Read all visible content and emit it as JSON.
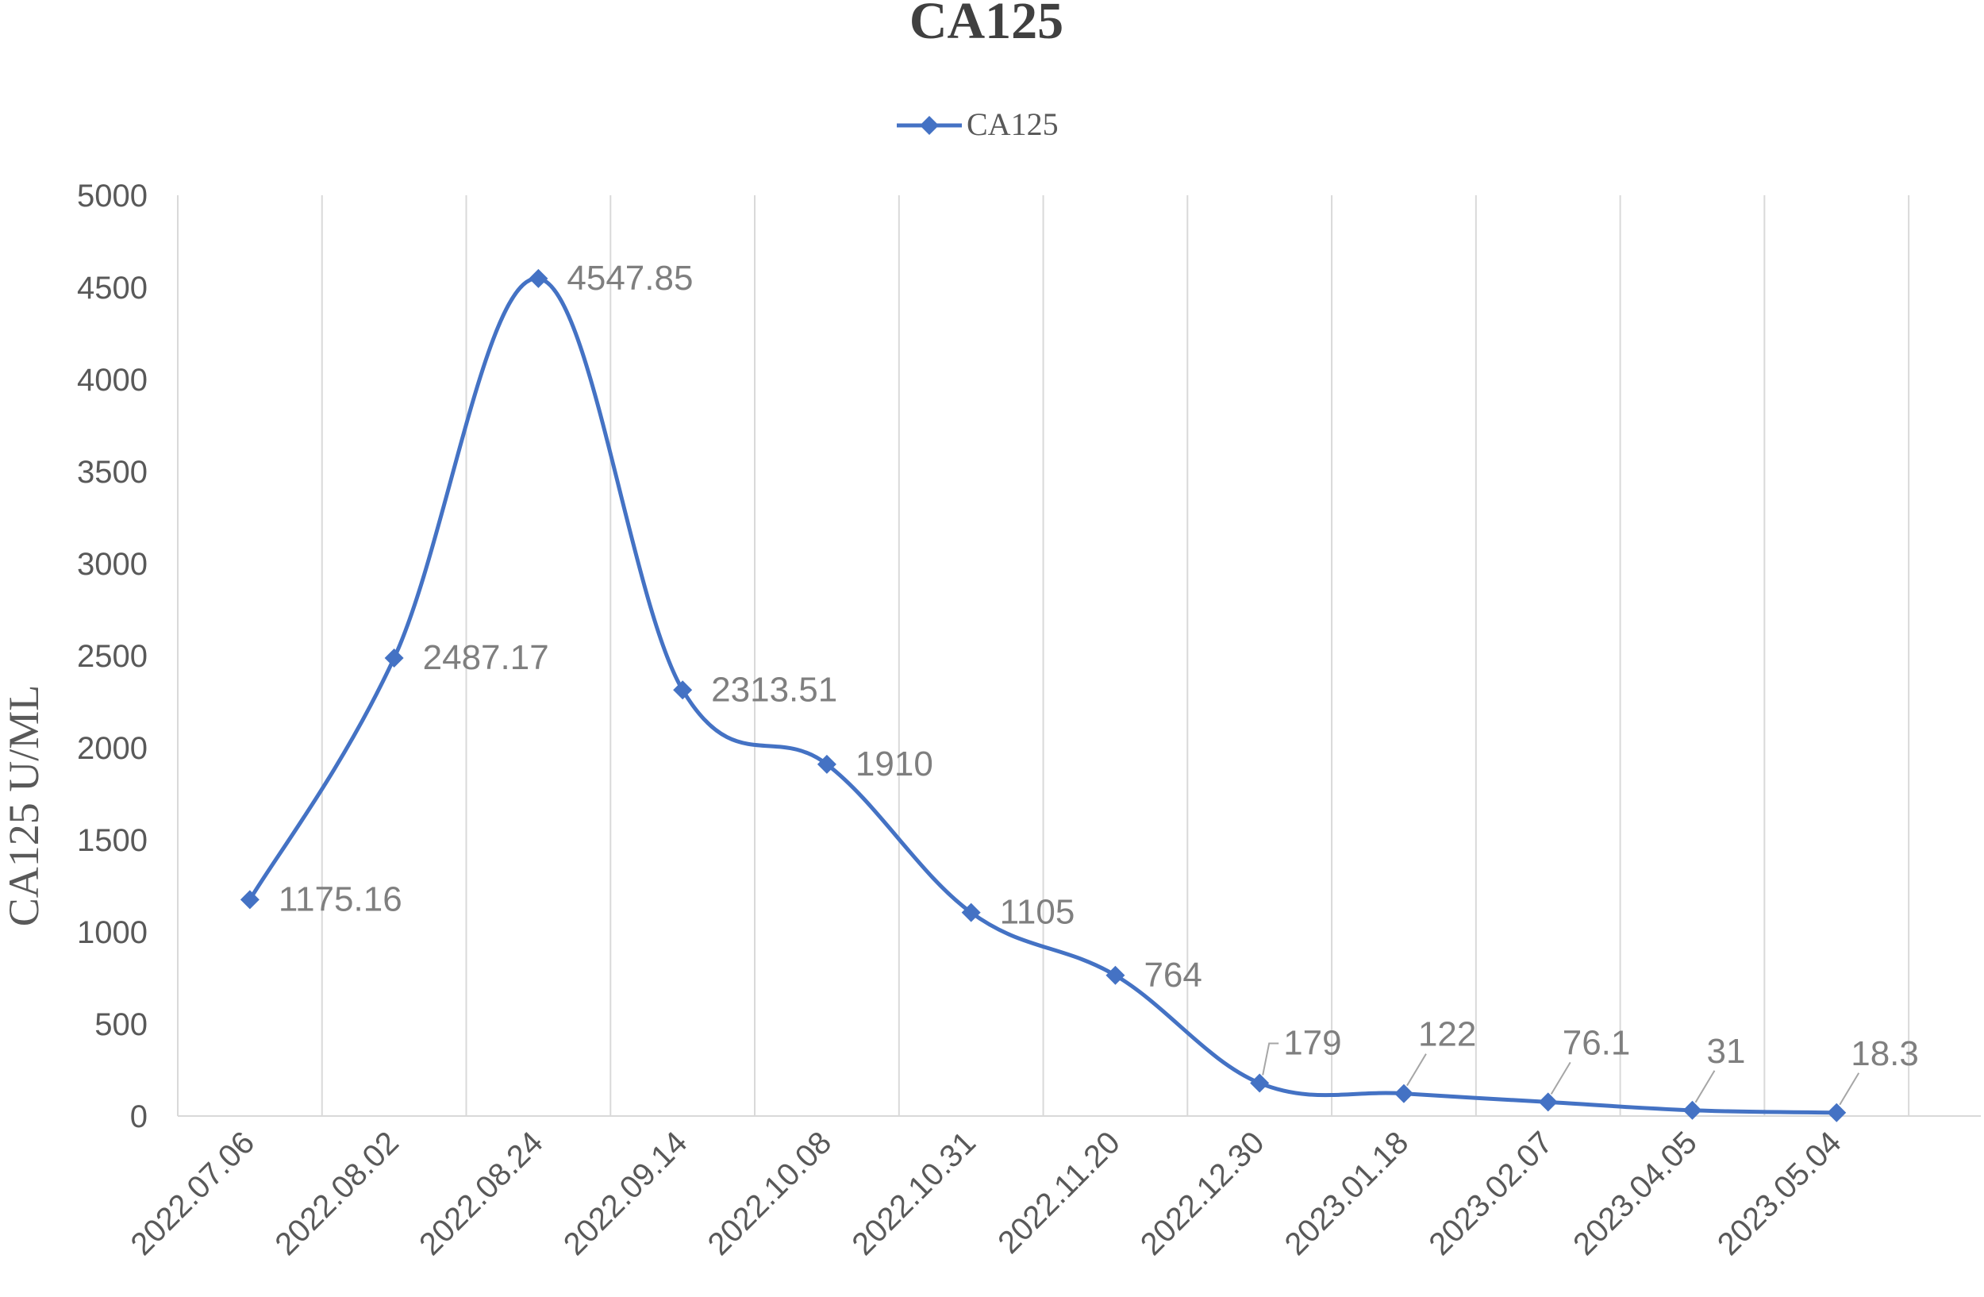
{
  "chart_data": {
    "type": "line",
    "title": "CA125",
    "xlabel": "",
    "ylabel": "CA125 U/ML",
    "ylim": [
      0,
      5000
    ],
    "y_ticks": [
      0,
      500,
      1000,
      1500,
      2000,
      2500,
      3000,
      3500,
      4000,
      4500,
      5000
    ],
    "categories": [
      "2022.07.06",
      "2022.08.02",
      "2022.08.24",
      "2022.09.14",
      "2022.10.08",
      "2022.10.31",
      "2022.11.20",
      "2022.12.30",
      "2023.01.18",
      "2023.02.07",
      "2023.04.05",
      "2023.05.04"
    ],
    "series": [
      {
        "name": "CA125",
        "values": [
          1175.16,
          2487.17,
          4547.85,
          2313.51,
          1910,
          1105,
          764,
          179,
          122,
          76.1,
          31,
          18.3
        ],
        "data_labels": [
          "1175.16",
          "2487.17",
          "4547.85",
          "2313.51",
          "1910",
          "1105",
          "764",
          "179",
          "122",
          "76.1",
          "31",
          "18.3"
        ],
        "color": "#4472C4",
        "marker": "diamond",
        "smooth": true
      }
    ],
    "grid": "vertical",
    "legend": "top-center",
    "colors": {
      "series": "#4472C4",
      "grid": "#D9D9D9",
      "axis": "#D9D9D9",
      "text": "#595959",
      "title": "#404040",
      "data_label": "#7F7F7F"
    }
  }
}
